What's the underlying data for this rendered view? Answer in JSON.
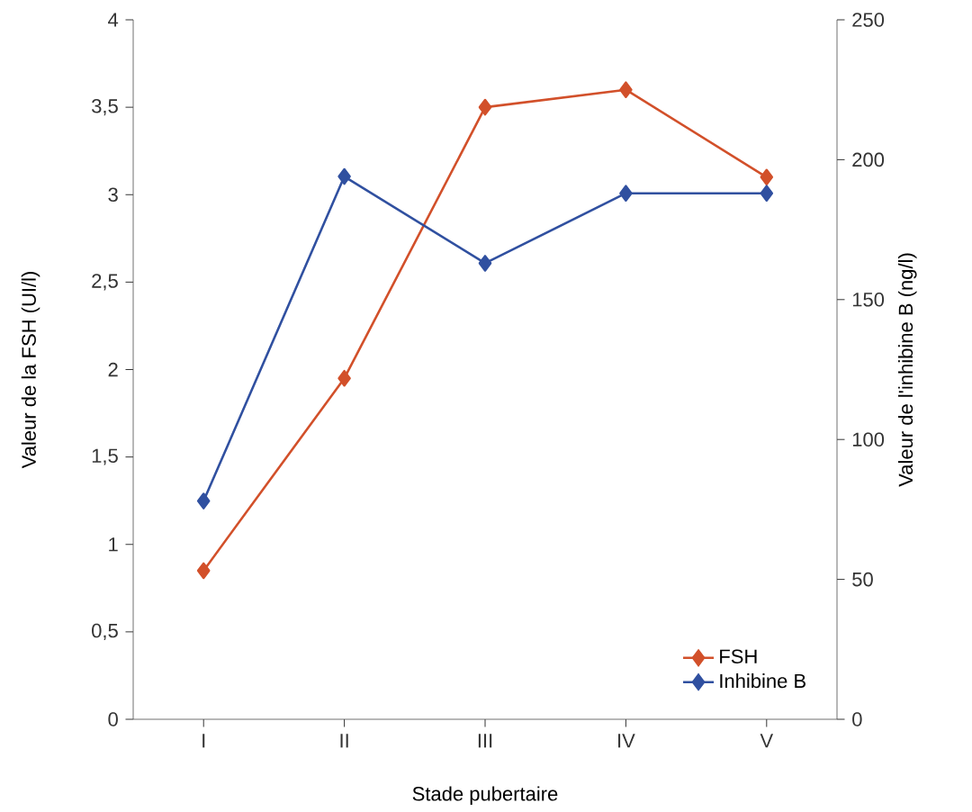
{
  "chart_data": {
    "type": "line",
    "xlabel": "Stade pubertaire",
    "ylabel": "Valeur de la FSH (UI/l)",
    "y2label": "Valeur de l'inhibine B (ng/l)",
    "categories": [
      "I",
      "II",
      "III",
      "IV",
      "V"
    ],
    "series": [
      {
        "name": "FSH",
        "color": "#d2502a",
        "values": [
          0.85,
          1.95,
          3.5,
          3.6,
          3.1
        ]
      },
      {
        "name": "Inhibine B",
        "color": "#3050a0",
        "axis": "y2",
        "values": [
          78,
          194,
          163,
          188,
          188
        ]
      }
    ],
    "ylim": [
      0,
      4
    ],
    "yticks": [
      0,
      {
        "value": 0.5,
        "label": "0,5"
      },
      1,
      {
        "value": 1.5,
        "label": "1,5"
      },
      2,
      {
        "value": 2.5,
        "label": "2,5"
      },
      3,
      {
        "value": 3.5,
        "label": "3,5"
      },
      4
    ],
    "y2lim": [
      0,
      250
    ],
    "y2ticks": [
      0,
      50,
      100,
      150,
      200,
      250
    ],
    "marker": "diamond",
    "line_style": "solid",
    "legend": "bottom right",
    "grid": false
  }
}
